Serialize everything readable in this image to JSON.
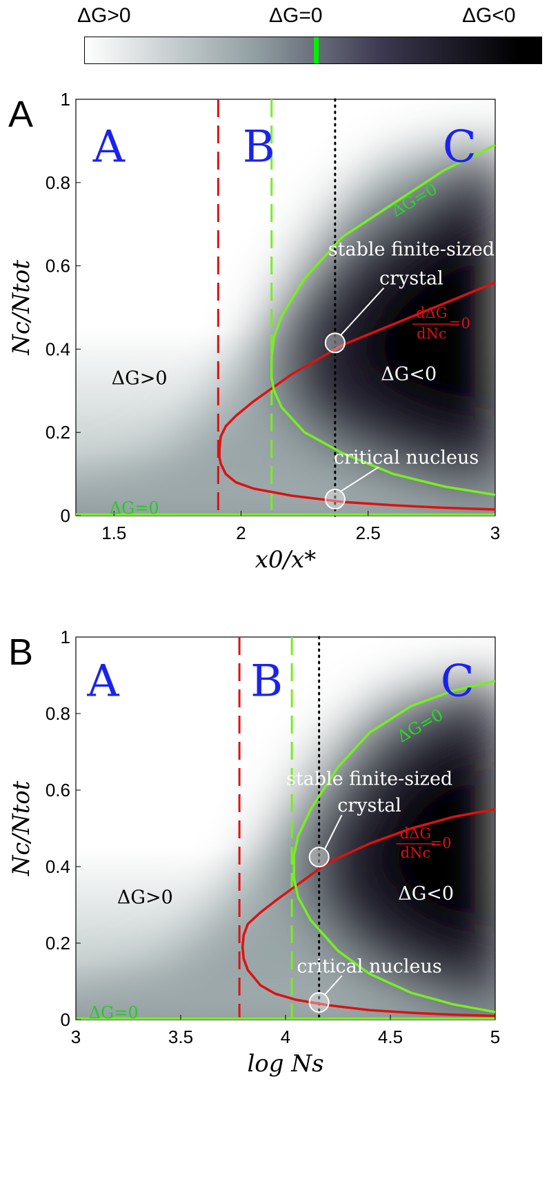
{
  "colorbar": {
    "label_left": "ΔG>0",
    "label_mid": "ΔG=0",
    "label_right": "ΔG<0",
    "marker_color": "#00ee00",
    "colors": [
      "#ffffff",
      "#8f9da0",
      "#3c3850",
      "#000000"
    ]
  },
  "chart_data": [
    {
      "type": "heatmap",
      "panel_label": "A",
      "xlabel": "x0/x*",
      "ylabel": "Nc/Ntot",
      "xlim": [
        1.35,
        3.0
      ],
      "ylim": [
        0,
        1
      ],
      "x_ticks": [
        "1.5",
        "2",
        "2.5",
        "3"
      ],
      "x_tick_values": [
        1.5,
        2.0,
        2.5,
        3.0
      ],
      "y_ticks": [
        "0",
        "0.2",
        "0.4",
        "0.6",
        "0.8",
        "1"
      ],
      "y_tick_values": [
        0,
        0.2,
        0.4,
        0.6,
        0.8,
        1.0
      ],
      "region_labels": [
        {
          "text": "A",
          "x": 1.48,
          "y": 0.9
        },
        {
          "text": "B",
          "x": 2.07,
          "y": 0.9
        },
        {
          "text": "C",
          "x": 2.86,
          "y": 0.9
        }
      ],
      "vlines": [
        {
          "x": 1.91,
          "color": "#dd1111",
          "style": "dashed"
        },
        {
          "x": 2.12,
          "color": "#77ee22",
          "style": "dashed"
        },
        {
          "x": 2.37,
          "color": "#000000",
          "style": "dotted"
        }
      ],
      "series": [
        {
          "color": "#dd1111",
          "x": [
            3.0,
            2.8,
            2.6,
            2.4,
            2.2,
            2.05,
            1.98,
            1.94,
            1.92,
            1.915,
            1.915,
            1.92,
            1.94,
            1.98,
            2.05,
            2.2,
            2.4,
            2.6,
            2.8,
            3.0
          ],
          "y": [
            0.015,
            0.019,
            0.025,
            0.033,
            0.048,
            0.065,
            0.08,
            0.1,
            0.125,
            0.14,
            0.16,
            0.19,
            0.215,
            0.24,
            0.275,
            0.34,
            0.41,
            0.46,
            0.51,
            0.56
          ]
        },
        {
          "color": "#77ee22",
          "x": [
            3.0,
            2.8,
            2.6,
            2.4,
            2.25,
            2.16,
            2.13,
            2.12,
            2.12,
            2.13,
            2.16,
            2.25,
            2.4,
            2.6,
            2.8,
            3.0
          ],
          "y": [
            0.05,
            0.07,
            0.1,
            0.15,
            0.2,
            0.26,
            0.3,
            0.33,
            0.38,
            0.43,
            0.48,
            0.57,
            0.67,
            0.75,
            0.83,
            0.89
          ]
        },
        {
          "color": "#77ee22",
          "x": [
            1.35,
            3.0
          ],
          "y": [
            0.003,
            0.003
          ]
        }
      ],
      "markers": [
        {
          "x": 2.37,
          "y": 0.415
        },
        {
          "x": 2.37,
          "y": 0.04
        }
      ],
      "annotations": [
        {
          "text": "ΔG>0",
          "x": 1.6,
          "y": 0.33,
          "color": "#000000"
        },
        {
          "text": "ΔG<0",
          "x": 2.66,
          "y": 0.34,
          "color": "#ffffff"
        },
        {
          "text": "ΔG=0",
          "x": 1.58,
          "y": 0.02,
          "color": "#22cc22"
        },
        {
          "text": "ΔG=0",
          "x": 2.68,
          "y": 0.76,
          "color": "#22dd22"
        },
        {
          "text": "stable finite-sized",
          "x": 2.67,
          "y": 0.64,
          "color": "#ffffff"
        },
        {
          "text": "crystal",
          "x": 2.67,
          "y": 0.57,
          "color": "#ffffff"
        },
        {
          "text": "critical nucleus",
          "x": 2.65,
          "y": 0.14,
          "color": "#ffffff"
        },
        {
          "text": "dΔG",
          "x": 2.75,
          "y": 0.49,
          "color": "#dd1111"
        },
        {
          "text": "dNc",
          "x": 2.75,
          "y": 0.44,
          "color": "#dd1111"
        },
        {
          "text": "=0",
          "x": 2.86,
          "y": 0.465,
          "color": "#dd1111"
        }
      ]
    },
    {
      "type": "heatmap",
      "panel_label": "B",
      "xlabel": "log Ns",
      "ylabel": "Nc/Ntot",
      "xlim": [
        3.0,
        5.0
      ],
      "ylim": [
        0,
        1
      ],
      "x_ticks": [
        "3",
        "3.5",
        "4",
        "4.5",
        "5"
      ],
      "x_tick_values": [
        3.0,
        3.5,
        4.0,
        4.5,
        5.0
      ],
      "y_ticks": [
        "0",
        "0.2",
        "0.4",
        "0.6",
        "0.8",
        "1"
      ],
      "y_tick_values": [
        0,
        0.2,
        0.4,
        0.6,
        0.8,
        1.0
      ],
      "region_labels": [
        {
          "text": "A",
          "x": 3.13,
          "y": 0.9
        },
        {
          "text": "B",
          "x": 3.91,
          "y": 0.9
        },
        {
          "text": "C",
          "x": 4.82,
          "y": 0.9
        }
      ],
      "vlines": [
        {
          "x": 3.78,
          "color": "#dd1111",
          "style": "dashed"
        },
        {
          "x": 4.03,
          "color": "#77ee22",
          "style": "dashed"
        },
        {
          "x": 4.16,
          "color": "#000000",
          "style": "dotted"
        }
      ],
      "series": [
        {
          "color": "#dd1111",
          "x": [
            5.0,
            4.8,
            4.6,
            4.4,
            4.2,
            4.05,
            3.95,
            3.88,
            3.82,
            3.8,
            3.795,
            3.8,
            3.82,
            3.88,
            3.95,
            4.05,
            4.2,
            4.4,
            4.6,
            4.8,
            5.0
          ],
          "y": [
            0.01,
            0.013,
            0.018,
            0.025,
            0.038,
            0.052,
            0.068,
            0.09,
            0.13,
            0.16,
            0.19,
            0.22,
            0.25,
            0.28,
            0.31,
            0.35,
            0.41,
            0.46,
            0.5,
            0.53,
            0.55
          ]
        },
        {
          "color": "#77ee22",
          "x": [
            5.0,
            4.8,
            4.6,
            4.4,
            4.25,
            4.12,
            4.06,
            4.04,
            4.04,
            4.06,
            4.12,
            4.25,
            4.4,
            4.6,
            4.8,
            5.0
          ],
          "y": [
            0.02,
            0.04,
            0.07,
            0.12,
            0.18,
            0.26,
            0.32,
            0.37,
            0.43,
            0.48,
            0.55,
            0.66,
            0.75,
            0.82,
            0.86,
            0.885
          ]
        },
        {
          "color": "#77ee22",
          "x": [
            3.0,
            5.0
          ],
          "y": [
            0.003,
            0.003
          ]
        }
      ],
      "markers": [
        {
          "x": 4.16,
          "y": 0.425
        },
        {
          "x": 4.16,
          "y": 0.045
        }
      ],
      "annotations": [
        {
          "text": "ΔG>0",
          "x": 3.33,
          "y": 0.32,
          "color": "#000000"
        },
        {
          "text": "ΔG<0",
          "x": 4.67,
          "y": 0.33,
          "color": "#ffffff"
        },
        {
          "text": "ΔG=0",
          "x": 3.18,
          "y": 0.02,
          "color": "#22cc22"
        },
        {
          "text": "ΔG=0",
          "x": 4.64,
          "y": 0.77,
          "color": "#22dd22"
        },
        {
          "text": "stable finite-sized",
          "x": 4.4,
          "y": 0.63,
          "color": "#ffffff"
        },
        {
          "text": "crystal",
          "x": 4.4,
          "y": 0.56,
          "color": "#ffffff"
        },
        {
          "text": "critical nucleus",
          "x": 4.4,
          "y": 0.14,
          "color": "#ffffff"
        },
        {
          "text": "dΔG",
          "x": 4.62,
          "y": 0.49,
          "color": "#dd1111"
        },
        {
          "text": "dNc",
          "x": 4.62,
          "y": 0.44,
          "color": "#dd1111"
        },
        {
          "text": "=0",
          "x": 4.74,
          "y": 0.465,
          "color": "#dd1111"
        }
      ]
    }
  ]
}
